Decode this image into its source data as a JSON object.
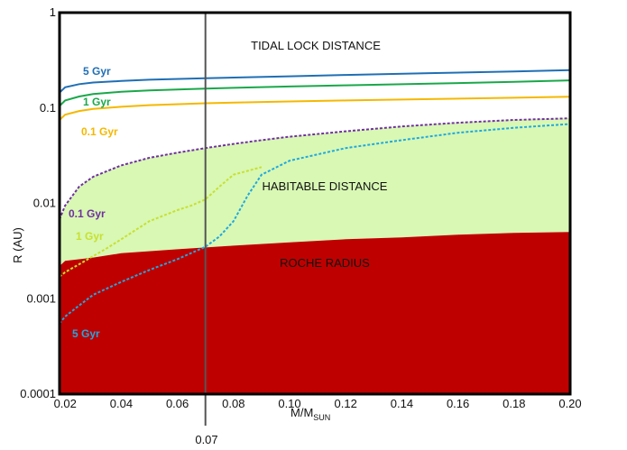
{
  "chart_data": {
    "type": "line",
    "xlabel": "M/M",
    "xlabel_sub": "SUN",
    "ylabel": "R (AU)",
    "xlim": [
      0.018,
      0.2
    ],
    "ylim": [
      0.0001,
      1
    ],
    "y_scale": "log",
    "x_ticks": [
      "0.02",
      "0.04",
      "0.06",
      "0.08",
      "0.10",
      "0.12",
      "0.14",
      "0.16",
      "0.18",
      "0.20"
    ],
    "y_ticks": [
      "0.0001",
      "0.001",
      "0.01",
      "0.1",
      "1"
    ],
    "grid": false,
    "vertical_line": {
      "x": 0.07,
      "label": "0.07",
      "color": "#555555"
    },
    "region_labels": {
      "tidal": "TIDAL LOCK DISTANCE",
      "habitable": "HABITABLE DISTANCE",
      "roche": "ROCHE RADIUS"
    },
    "colors": {
      "roche_fill": "#bf0000",
      "habitable_fill": "#d8f8b4",
      "tidal_5": "#1f6fb5",
      "tidal_1": "#1aa84a",
      "tidal_01": "#f5b800",
      "hab_01": "#7030a0",
      "hab_1": "#c8e030",
      "hab_5": "#20a8e0"
    },
    "series": [
      {
        "name": "5 Gyr",
        "group": "tidal lock",
        "style": "solid",
        "x": [
          0.018,
          0.02,
          0.025,
          0.03,
          0.04,
          0.05,
          0.07,
          0.1,
          0.12,
          0.15,
          0.18,
          0.2
        ],
        "y": [
          0.145,
          0.165,
          0.178,
          0.185,
          0.192,
          0.198,
          0.205,
          0.215,
          0.222,
          0.232,
          0.242,
          0.25
        ]
      },
      {
        "name": "1 Gyr",
        "group": "tidal lock",
        "style": "solid",
        "x": [
          0.018,
          0.02,
          0.025,
          0.03,
          0.04,
          0.05,
          0.07,
          0.1,
          0.12,
          0.15,
          0.18,
          0.2
        ],
        "y": [
          0.105,
          0.12,
          0.132,
          0.14,
          0.148,
          0.153,
          0.16,
          0.168,
          0.173,
          0.18,
          0.188,
          0.195
        ]
      },
      {
        "name": "0.1 Gyr",
        "group": "tidal lock",
        "style": "solid",
        "x": [
          0.018,
          0.02,
          0.025,
          0.03,
          0.04,
          0.05,
          0.07,
          0.1,
          0.12,
          0.15,
          0.18,
          0.2
        ],
        "y": [
          0.075,
          0.085,
          0.093,
          0.098,
          0.103,
          0.107,
          0.112,
          0.117,
          0.12,
          0.124,
          0.128,
          0.131
        ]
      },
      {
        "name": "0.1 Gyr",
        "group": "habitable",
        "style": "dotted",
        "x": [
          0.018,
          0.02,
          0.025,
          0.03,
          0.04,
          0.05,
          0.06,
          0.07,
          0.08,
          0.09,
          0.1,
          0.12,
          0.14,
          0.16,
          0.18,
          0.2
        ],
        "y": [
          0.0068,
          0.0095,
          0.015,
          0.019,
          0.025,
          0.03,
          0.034,
          0.038,
          0.042,
          0.046,
          0.05,
          0.057,
          0.064,
          0.07,
          0.075,
          0.078
        ]
      },
      {
        "name": "1 Gyr",
        "group": "habitable",
        "style": "dotted",
        "x": [
          0.018,
          0.02,
          0.025,
          0.03,
          0.035,
          0.04,
          0.05,
          0.06,
          0.065,
          0.07,
          0.075,
          0.08,
          0.09
        ],
        "y": [
          0.0017,
          0.0019,
          0.0023,
          0.0028,
          0.0034,
          0.0042,
          0.0065,
          0.0085,
          0.0095,
          0.011,
          0.015,
          0.02,
          0.024
        ]
      },
      {
        "name": "5 Gyr",
        "group": "habitable",
        "style": "dotted",
        "x": [
          0.018,
          0.02,
          0.025,
          0.03,
          0.04,
          0.05,
          0.06,
          0.07,
          0.075,
          0.08,
          0.085,
          0.09,
          0.1,
          0.12,
          0.14,
          0.16,
          0.18,
          0.2
        ],
        "y": [
          0.00055,
          0.00065,
          0.00085,
          0.0011,
          0.0015,
          0.002,
          0.0026,
          0.0035,
          0.0045,
          0.0065,
          0.012,
          0.02,
          0.028,
          0.038,
          0.046,
          0.055,
          0.062,
          0.068
        ]
      }
    ],
    "roche_radius": {
      "x": [
        0.018,
        0.02,
        0.03,
        0.04,
        0.06,
        0.08,
        0.1,
        0.12,
        0.14,
        0.16,
        0.18,
        0.2
      ],
      "y": [
        0.0022,
        0.0025,
        0.0027,
        0.003,
        0.0033,
        0.0036,
        0.0039,
        0.0042,
        0.0044,
        0.0047,
        0.0049,
        0.005
      ]
    },
    "curve_labels": {
      "tidal_5": "5 Gyr",
      "tidal_1": "1 Gyr",
      "tidal_01": "0.1 Gyr",
      "hab_01": "0.1 Gyr",
      "hab_1": "1 Gyr",
      "hab_5": "5 Gyr"
    }
  }
}
